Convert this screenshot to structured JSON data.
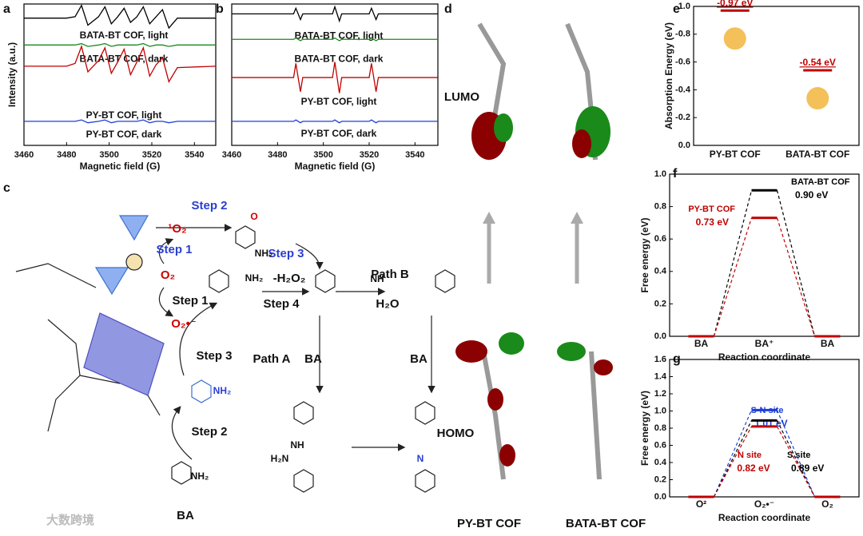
{
  "panel_labels": [
    "a",
    "b",
    "c",
    "d",
    "e",
    "f",
    "g"
  ],
  "chart_data": [
    {
      "type": "line",
      "xlabel": "Magnetic field (G)",
      "ylabel": "Intensity (a.u.)",
      "x": [
        3460,
        3480,
        3484,
        3487,
        3490,
        3495,
        3498,
        3501,
        3504,
        3507,
        3510,
        3513,
        3516,
        3519,
        3522,
        3525,
        3528,
        3532,
        3550
      ],
      "xlim": [
        3460,
        3550
      ],
      "xticks": [
        3460,
        3480,
        3500,
        3520,
        3540
      ],
      "ylim": [
        0,
        10
      ],
      "series": [
        {
          "name": "BATA-BT COF, light",
          "color": "#000000",
          "values": [
            9,
            9,
            9.1,
            9.9,
            8.5,
            9.1,
            9.8,
            8.6,
            9.1,
            9.7,
            8.7,
            9.1,
            9.8,
            8.6,
            9.1,
            9.6,
            8.3,
            9,
            9
          ]
        },
        {
          "name": "BATA-BT COF, dark",
          "color": "#1a8a1a",
          "values": [
            7.1,
            7.1,
            7.1,
            7.2,
            7.0,
            7.1,
            7.2,
            7.0,
            7.1,
            7.1,
            7.1,
            7.1,
            7.2,
            7.0,
            7.1,
            7.1,
            7.0,
            7.1,
            7.1
          ]
        },
        {
          "name": "PY-BT COF, light",
          "color": "#c00000",
          "values": [
            5.6,
            5.6,
            5.8,
            7.0,
            5.2,
            6.0,
            6.9,
            5.1,
            5.9,
            6.8,
            5.0,
            5.9,
            6.9,
            4.9,
            5.7,
            6.2,
            4.5,
            5.5,
            5.6
          ]
        },
        {
          "name": "PY-BT COF, dark",
          "color": "#1f3fd8",
          "values": [
            1.7,
            1.7,
            1.7,
            1.8,
            1.6,
            1.7,
            1.8,
            1.6,
            1.7,
            1.7,
            1.7,
            1.7,
            1.8,
            1.6,
            1.7,
            1.7,
            1.6,
            1.7,
            1.7
          ]
        }
      ]
    },
    {
      "type": "line",
      "xlabel": "Magnetic field (G)",
      "x": [
        3460,
        3487,
        3488,
        3490,
        3491,
        3504,
        3505,
        3507,
        3508,
        3520,
        3521,
        3523,
        3524,
        3550
      ],
      "xlim": [
        3460,
        3550
      ],
      "xticks": [
        3460,
        3480,
        3500,
        3520,
        3540
      ],
      "ylim": [
        0,
        10
      ],
      "series": [
        {
          "name": "BATA-BT COF, light",
          "color": "#000000",
          "values": [
            9.3,
            9.3,
            9.7,
            8.9,
            9.3,
            9.3,
            9.8,
            8.8,
            9.3,
            9.3,
            9.7,
            8.9,
            9.3,
            9.3
          ]
        },
        {
          "name": "BATA-BT COF, dark",
          "color": "#1a8a1a",
          "values": [
            7.5,
            7.5,
            7.6,
            7.4,
            7.5,
            7.5,
            7.6,
            7.4,
            7.5,
            7.5,
            7.6,
            7.4,
            7.5,
            7.5
          ]
        },
        {
          "name": "PY-BT COF, light",
          "color": "#c00000",
          "values": [
            4.8,
            4.8,
            5.8,
            3.8,
            4.8,
            4.8,
            5.9,
            3.7,
            4.8,
            4.8,
            5.8,
            3.8,
            4.8,
            4.8
          ]
        },
        {
          "name": "PY-BT COF, dark",
          "color": "#1f3fd8",
          "values": [
            1.7,
            1.7,
            1.8,
            1.6,
            1.7,
            1.7,
            1.8,
            1.6,
            1.7,
            1.7,
            1.8,
            1.6,
            1.7,
            1.7
          ]
        }
      ]
    },
    {
      "type": "bar",
      "ylabel": "Absorption Energy (eV)",
      "categories": [
        "PY-BT COF",
        "BATA-BT COF"
      ],
      "values": [
        -0.97,
        -0.54
      ],
      "value_labels": [
        "-0.97 eV",
        "-0.54 eV"
      ],
      "color": "#c00000",
      "ylim": [
        0,
        -1.0
      ],
      "yticks": [
        {
          "value": -1.0,
          "label": "-1.0"
        },
        {
          "value": -0.8,
          "label": "-0.8"
        },
        {
          "value": -0.6,
          "label": "-0.6"
        },
        {
          "value": -0.4,
          "label": "-0.4"
        },
        {
          "value": -0.2,
          "label": "-0.2"
        },
        {
          "value": 0.0,
          "label": "0.0"
        }
      ]
    },
    {
      "type": "step",
      "xlabel": "Reaction coordinate",
      "ylabel": "Free energy (eV)",
      "categories": [
        "BA",
        "BA⁺",
        "BA"
      ],
      "ylim": [
        0,
        1.0
      ],
      "yticks": [
        {
          "value": 0.0,
          "label": "0.0"
        },
        {
          "value": 0.2,
          "label": "0.2"
        },
        {
          "value": 0.4,
          "label": "0.4"
        },
        {
          "value": 0.6,
          "label": "0.6"
        },
        {
          "value": 0.8,
          "label": "0.8"
        },
        {
          "value": 1.0,
          "label": "1.0"
        }
      ],
      "series": [
        {
          "name": "BATA-BT COF",
          "color": "#000000",
          "values": [
            0,
            0.9,
            0
          ],
          "value_labels": [
            null,
            "0.90 eV",
            null
          ]
        },
        {
          "name": "PY-BT COF",
          "color": "#c00000",
          "values": [
            0,
            0.73,
            0
          ],
          "value_labels": [
            null,
            "0.73 eV",
            null
          ]
        }
      ]
    },
    {
      "type": "step",
      "xlabel": "Reaction coordinate",
      "ylabel": "Free energy (eV)",
      "categories": [
        "O²",
        "O₂•⁻",
        "O₂"
      ],
      "ylim": [
        0,
        1.6
      ],
      "yticks": [
        {
          "value": 0.0,
          "label": "0.0"
        },
        {
          "value": 0.2,
          "label": "0.2"
        },
        {
          "value": 0.4,
          "label": "0.4"
        },
        {
          "value": 0.6,
          "label": "0.6"
        },
        {
          "value": 0.8,
          "label": "0.8"
        },
        {
          "value": 1.0,
          "label": "1.0"
        },
        {
          "value": 1.2,
          "label": "1.2"
        },
        {
          "value": 1.4,
          "label": "1.4"
        },
        {
          "value": 1.6,
          "label": "1.6"
        }
      ],
      "series": [
        {
          "name": "S-N site",
          "color": "#1f3fd8",
          "values": [
            0,
            1.01,
            0
          ],
          "value_labels": [
            null,
            "1.01 eV",
            null
          ]
        },
        {
          "name": "S site",
          "color": "#000000",
          "values": [
            0,
            0.89,
            0
          ],
          "value_labels": [
            null,
            "0.89 eV",
            null
          ]
        },
        {
          "name": "N site",
          "color": "#c00000",
          "values": [
            0,
            0.82,
            0
          ],
          "value_labels": [
            null,
            "0.82 eV",
            null
          ]
        }
      ]
    }
  ],
  "scheme": {
    "labels": [
      "Step 2",
      "¹O₂",
      "Step 1",
      "O₂",
      "Step 3",
      "NH₂",
      "-H₂O₂",
      "Step 4",
      "NH",
      "Path B",
      "H₂O",
      "Step 1",
      "O₂•⁻",
      "Step 3",
      "Path A",
      "BA",
      "NH₂",
      "Step 2",
      "BA",
      "NH₂",
      "BA",
      "NH",
      "H₂N",
      "N",
      "O",
      "NH₂"
    ]
  },
  "orbitals": {
    "labels": [
      "LUMO",
      "HOMO",
      "PY-BT COF",
      "BATA-BT COF"
    ]
  },
  "watermark": "大数跨境"
}
